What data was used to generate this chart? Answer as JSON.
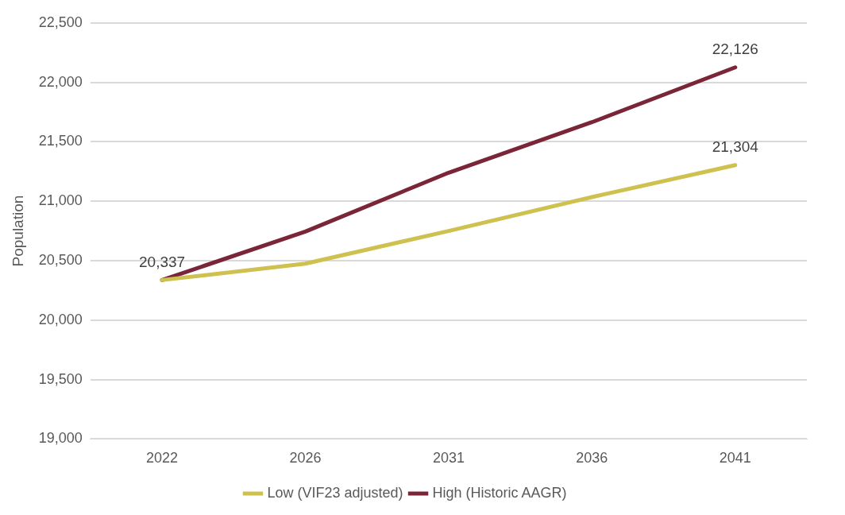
{
  "chart_data": {
    "type": "line",
    "ylabel": "Population",
    "categories": [
      "2022",
      "2026",
      "2031",
      "2036",
      "2041"
    ],
    "series": [
      {
        "name": "Low (VIF23 adjusted)",
        "color": "#cfc150",
        "values": [
          20337,
          20475,
          20750,
          21035,
          21304
        ],
        "value_labels": [
          null,
          null,
          null,
          null,
          "21,304"
        ]
      },
      {
        "name": "High (Historic AAGR)",
        "color": "#7a2538",
        "values": [
          20337,
          20745,
          21240,
          21665,
          22126
        ],
        "value_labels": [
          "20,337",
          null,
          null,
          null,
          "22,126"
        ]
      }
    ],
    "ylim": [
      19000,
      22500
    ],
    "yticks": [
      {
        "value": 19000,
        "label": "19,000"
      },
      {
        "value": 19500,
        "label": "19,500"
      },
      {
        "value": 20000,
        "label": "20,000"
      },
      {
        "value": 20500,
        "label": "20,500"
      },
      {
        "value": 21000,
        "label": "21,000"
      },
      {
        "value": 21500,
        "label": "21,500"
      },
      {
        "value": 22000,
        "label": "22,000"
      },
      {
        "value": 22500,
        "label": "22,500"
      }
    ],
    "grid": "y",
    "legend": "bottom",
    "marker": "none",
    "line_style": "solid"
  }
}
